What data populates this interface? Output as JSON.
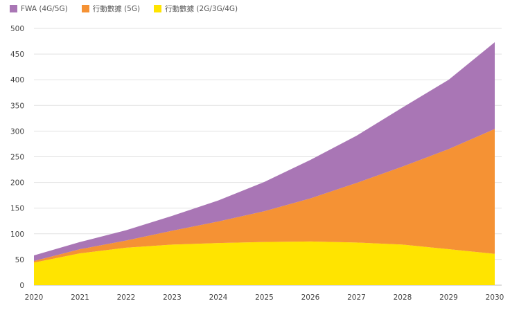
{
  "chart_data": {
    "type": "area",
    "stacked": true,
    "categories": [
      "2020",
      "2021",
      "2022",
      "2023",
      "2024",
      "2025",
      "2026",
      "2027",
      "2028",
      "2029",
      "2030"
    ],
    "series": [
      {
        "name": "行動數據 (2G/3G/4G)",
        "color": "#ffe400",
        "values": [
          44,
          62,
          73,
          79,
          82,
          84,
          85,
          83,
          79,
          70,
          61
        ]
      },
      {
        "name": "行動數據 (5G)",
        "color": "#f59234",
        "values": [
          3,
          8,
          14,
          27,
          42,
          60,
          84,
          116,
          152,
          195,
          243
        ]
      },
      {
        "name": "FWA (4G/5G)",
        "color": "#a976b5",
        "values": [
          11,
          14,
          20,
          29,
          41,
          57,
          75,
          92,
          115,
          135,
          169
        ]
      }
    ],
    "legend_order": [
      2,
      1,
      0
    ],
    "ylim": [
      0,
      500
    ],
    "yticks": [
      0,
      50,
      100,
      150,
      200,
      250,
      300,
      350,
      400,
      450,
      500
    ],
    "grid": true,
    "legend_position": "top-left",
    "title": "",
    "xlabel": "",
    "ylabel": ""
  }
}
